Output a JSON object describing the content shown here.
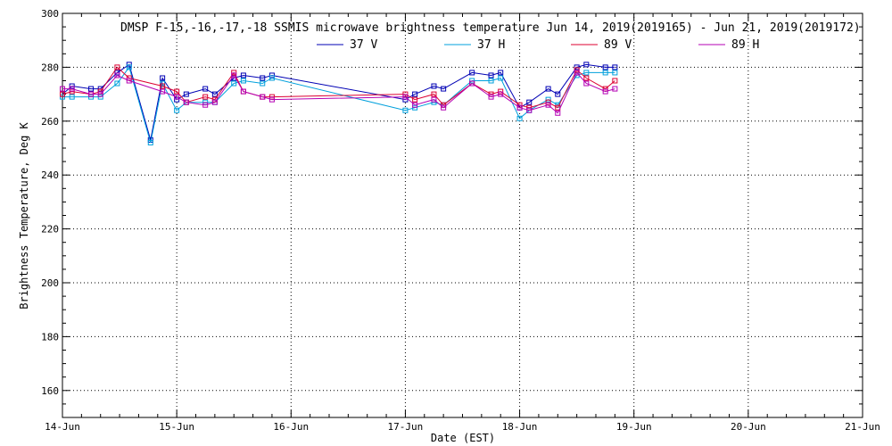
{
  "chart_data": {
    "type": "line",
    "title": "DMSP F-15,-16,-17,-18 SSMIS microwave brightness temperature Jun 14, 2019(2019165) - Jun 21, 2019(2019172)",
    "xlabel": "Date (EST)",
    "ylabel": "Brightness Temperature, Deg K",
    "xlim": [
      "2019-06-14T00:00",
      "2019-06-21T00:00"
    ],
    "ylim": [
      150,
      300
    ],
    "x_ticks": [
      "14-Jun",
      "15-Jun",
      "16-Jun",
      "17-Jun",
      "18-Jun",
      "19-Jun",
      "20-Jun",
      "21-Jun"
    ],
    "y_ticks": [
      160,
      180,
      200,
      220,
      240,
      260,
      280,
      300
    ],
    "grid": true,
    "legend_position": "top",
    "series": [
      {
        "name": "37 V",
        "color": "#0000b4",
        "points": [
          [
            "2019-06-14T00:00",
            270
          ],
          [
            "2019-06-14T02:00",
            273
          ],
          [
            "2019-06-14T06:00",
            272
          ],
          [
            "2019-06-14T08:00",
            272
          ],
          [
            "2019-06-14T11:30",
            278
          ],
          [
            "2019-06-14T14:00",
            281
          ],
          [
            "2019-06-14T18:30",
            253
          ],
          [
            "2019-06-14T21:00",
            276
          ],
          [
            "2019-06-15T00:00",
            268
          ],
          [
            "2019-06-15T02:00",
            270
          ],
          [
            "2019-06-15T06:00",
            272
          ],
          [
            "2019-06-15T08:00",
            270
          ],
          [
            "2019-06-15T12:00",
            276
          ],
          [
            "2019-06-15T14:00",
            277
          ],
          [
            "2019-06-15T18:00",
            276
          ],
          [
            "2019-06-15T20:00",
            277
          ],
          [
            "2019-06-17T00:00",
            268
          ],
          [
            "2019-06-17T02:00",
            270
          ],
          [
            "2019-06-17T06:00",
            273
          ],
          [
            "2019-06-17T08:00",
            272
          ],
          [
            "2019-06-17T14:00",
            278
          ],
          [
            "2019-06-17T18:00",
            277
          ],
          [
            "2019-06-17T20:00",
            278
          ],
          [
            "2019-06-18T00:00",
            265
          ],
          [
            "2019-06-18T02:00",
            267
          ],
          [
            "2019-06-18T06:00",
            272
          ],
          [
            "2019-06-18T08:00",
            270
          ],
          [
            "2019-06-18T12:00",
            280
          ],
          [
            "2019-06-18T14:00",
            281
          ],
          [
            "2019-06-18T18:00",
            280
          ],
          [
            "2019-06-18T20:00",
            280
          ]
        ]
      },
      {
        "name": "37 H",
        "color": "#00a0dc",
        "points": [
          [
            "2019-06-14T00:00",
            269
          ],
          [
            "2019-06-14T02:00",
            269
          ],
          [
            "2019-06-14T06:00",
            269
          ],
          [
            "2019-06-14T08:00",
            269
          ],
          [
            "2019-06-14T11:30",
            274
          ],
          [
            "2019-06-14T14:00",
            280
          ],
          [
            "2019-06-14T18:30",
            252
          ],
          [
            "2019-06-14T21:00",
            274
          ],
          [
            "2019-06-15T00:00",
            264
          ],
          [
            "2019-06-15T02:00",
            267
          ],
          [
            "2019-06-15T06:00",
            267
          ],
          [
            "2019-06-15T08:00",
            267
          ],
          [
            "2019-06-15T12:00",
            274
          ],
          [
            "2019-06-15T14:00",
            275
          ],
          [
            "2019-06-15T18:00",
            274
          ],
          [
            "2019-06-15T20:00",
            276
          ],
          [
            "2019-06-17T00:00",
            264
          ],
          [
            "2019-06-17T02:00",
            265
          ],
          [
            "2019-06-17T06:00",
            267
          ],
          [
            "2019-06-17T08:00",
            266
          ],
          [
            "2019-06-17T14:00",
            275
          ],
          [
            "2019-06-17T18:00",
            275
          ],
          [
            "2019-06-17T20:00",
            276
          ],
          [
            "2019-06-18T00:00",
            261
          ],
          [
            "2019-06-18T02:00",
            264
          ],
          [
            "2019-06-18T06:00",
            268
          ],
          [
            "2019-06-18T08:00",
            266
          ],
          [
            "2019-06-18T12:00",
            277
          ],
          [
            "2019-06-18T14:00",
            278
          ],
          [
            "2019-06-18T18:00",
            278
          ],
          [
            "2019-06-18T20:00",
            278
          ]
        ]
      },
      {
        "name": "89 V",
        "color": "#dc0032",
        "points": [
          [
            "2019-06-14T00:00",
            270
          ],
          [
            "2019-06-14T02:00",
            271
          ],
          [
            "2019-06-14T06:00",
            270
          ],
          [
            "2019-06-14T08:00",
            271
          ],
          [
            "2019-06-14T11:30",
            280
          ],
          [
            "2019-06-14T14:00",
            276
          ],
          [
            "2019-06-14T21:00",
            273
          ],
          [
            "2019-06-15T00:00",
            271
          ],
          [
            "2019-06-15T02:00",
            267
          ],
          [
            "2019-06-15T06:00",
            269
          ],
          [
            "2019-06-15T08:00",
            268
          ],
          [
            "2019-06-15T12:00",
            278
          ],
          [
            "2019-06-15T14:00",
            271
          ],
          [
            "2019-06-15T18:00",
            269
          ],
          [
            "2019-06-15T20:00",
            269
          ],
          [
            "2019-06-17T00:00",
            270
          ],
          [
            "2019-06-17T02:00",
            268
          ],
          [
            "2019-06-17T06:00",
            270
          ],
          [
            "2019-06-17T08:00",
            266
          ],
          [
            "2019-06-17T14:00",
            274
          ],
          [
            "2019-06-17T18:00",
            270
          ],
          [
            "2019-06-17T20:00",
            271
          ],
          [
            "2019-06-18T00:00",
            266
          ],
          [
            "2019-06-18T02:00",
            265
          ],
          [
            "2019-06-18T06:00",
            267
          ],
          [
            "2019-06-18T08:00",
            265
          ],
          [
            "2019-06-18T12:00",
            279
          ],
          [
            "2019-06-18T14:00",
            276
          ],
          [
            "2019-06-18T18:00",
            272
          ],
          [
            "2019-06-18T20:00",
            275
          ]
        ]
      },
      {
        "name": "89 H",
        "color": "#b400b4",
        "points": [
          [
            "2019-06-14T00:00",
            272
          ],
          [
            "2019-06-14T02:00",
            272
          ],
          [
            "2019-06-14T06:00",
            270
          ],
          [
            "2019-06-14T08:00",
            270
          ],
          [
            "2019-06-14T11:30",
            277
          ],
          [
            "2019-06-14T14:00",
            275
          ],
          [
            "2019-06-14T21:00",
            271
          ],
          [
            "2019-06-15T00:00",
            269
          ],
          [
            "2019-06-15T02:00",
            267
          ],
          [
            "2019-06-15T06:00",
            266
          ],
          [
            "2019-06-15T08:00",
            267
          ],
          [
            "2019-06-15T12:00",
            277
          ],
          [
            "2019-06-15T14:00",
            271
          ],
          [
            "2019-06-15T18:00",
            269
          ],
          [
            "2019-06-15T20:00",
            268
          ],
          [
            "2019-06-17T00:00",
            269
          ],
          [
            "2019-06-17T02:00",
            266
          ],
          [
            "2019-06-17T06:00",
            268
          ],
          [
            "2019-06-17T08:00",
            265
          ],
          [
            "2019-06-17T14:00",
            274
          ],
          [
            "2019-06-17T18:00",
            269
          ],
          [
            "2019-06-17T20:00",
            270
          ],
          [
            "2019-06-18T00:00",
            265
          ],
          [
            "2019-06-18T02:00",
            264
          ],
          [
            "2019-06-18T06:00",
            266
          ],
          [
            "2019-06-18T08:00",
            263
          ],
          [
            "2019-06-18T12:00",
            278
          ],
          [
            "2019-06-18T14:00",
            274
          ],
          [
            "2019-06-18T18:00",
            271
          ],
          [
            "2019-06-18T20:00",
            272
          ]
        ]
      }
    ]
  }
}
